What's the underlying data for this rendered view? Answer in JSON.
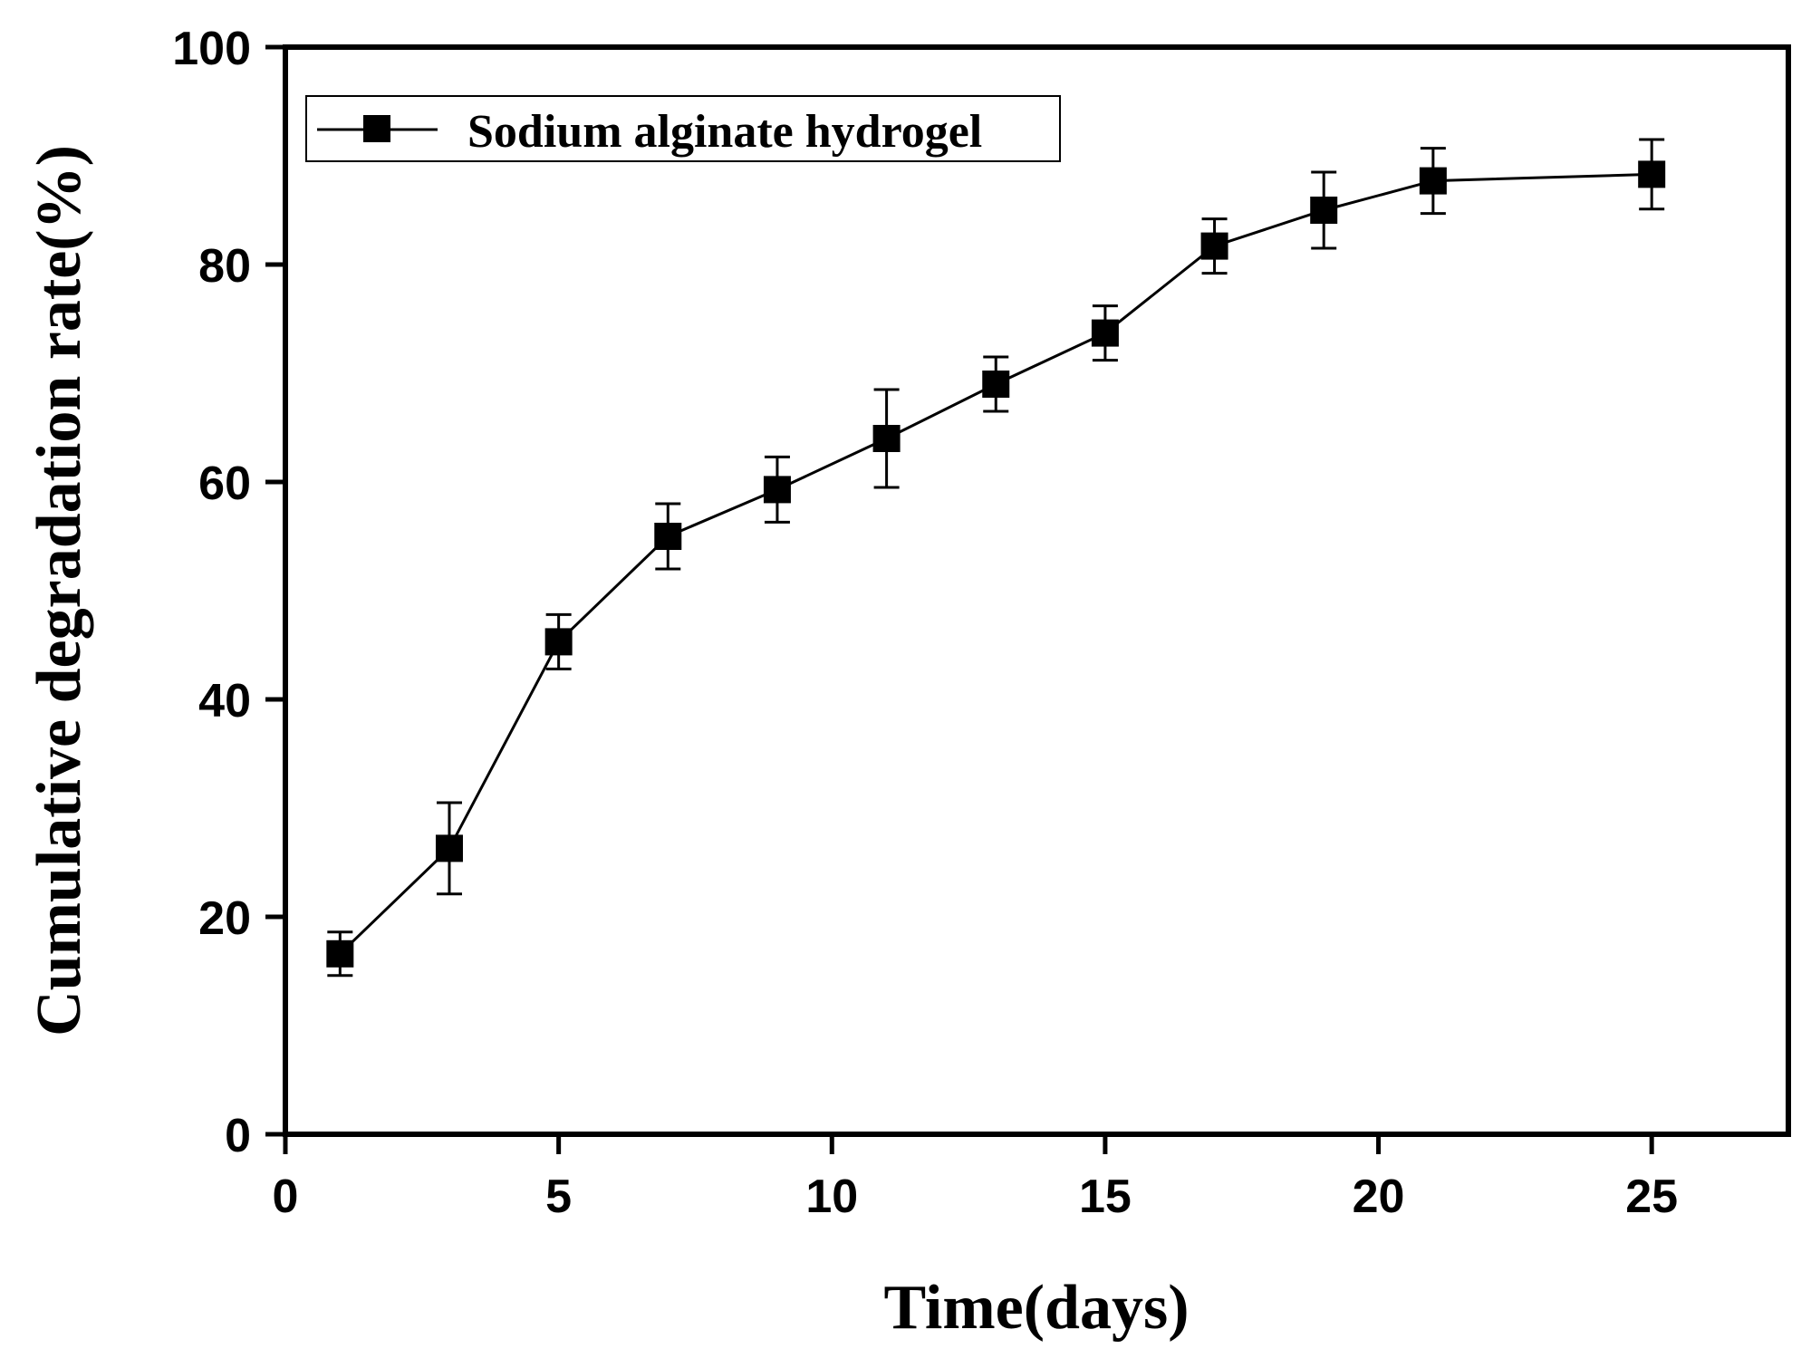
{
  "chart_data": {
    "type": "line",
    "xlabel": "Time(days)",
    "ylabel": "Cumulative degradation rate(%)",
    "xlim": [
      0,
      27.5
    ],
    "ylim": [
      0,
      100
    ],
    "x_ticks": [
      0,
      5,
      10,
      15,
      20,
      25
    ],
    "y_ticks": [
      0,
      20,
      40,
      60,
      80,
      100
    ],
    "x_tick_labels": [
      "0",
      "5",
      "10",
      "15",
      "20",
      "25"
    ],
    "y_tick_labels": [
      "0",
      "20",
      "40",
      "60",
      "80",
      "100"
    ],
    "grid": false,
    "legend_position": "top-left",
    "series": [
      {
        "name": "Sodium alginate hydrogel",
        "color": "#000000",
        "marker": "square",
        "x": [
          1,
          3,
          5,
          7,
          9,
          11,
          13,
          15,
          17,
          19,
          21,
          25
        ],
        "y": [
          16.6,
          26.3,
          45.3,
          55.0,
          59.3,
          64.0,
          69.0,
          73.7,
          81.7,
          85.0,
          87.7,
          88.3
        ],
        "error": [
          2.0,
          4.2,
          2.5,
          3.0,
          3.0,
          4.5,
          2.5,
          2.5,
          2.5,
          3.5,
          3.0,
          3.2
        ]
      }
    ]
  }
}
